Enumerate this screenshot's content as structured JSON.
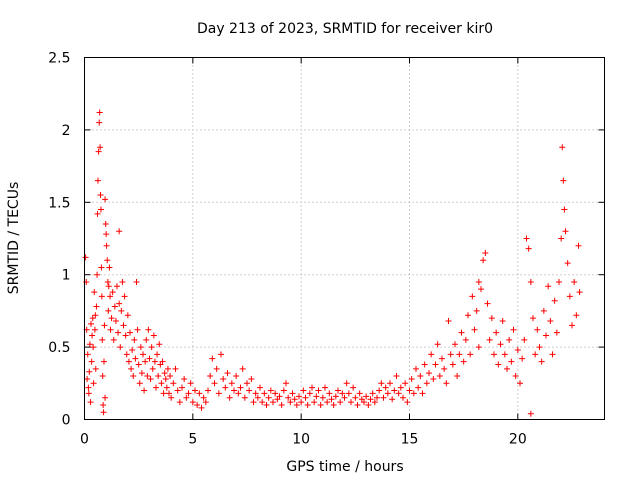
{
  "chart_data": {
    "type": "scatter",
    "title": "Day 213 of 2023, SRMTID for receiver kir0",
    "xlabel": "GPS time / hours",
    "ylabel": "SRMTID / TECUs",
    "xlim": [
      0,
      24
    ],
    "ylim": [
      0,
      2.5
    ],
    "xticks": [
      0,
      5,
      10,
      15,
      20
    ],
    "xtick_labels": [
      "0",
      "5",
      "10",
      "15",
      "20"
    ],
    "yticks": [
      0,
      0.5,
      1,
      1.5,
      2,
      2.5
    ],
    "ytick_labels": [
      "0",
      "0.5",
      "1",
      "1.5",
      "2",
      "2.5"
    ],
    "grid": true,
    "marker": "+",
    "series": [
      {
        "name": "SRMTID",
        "color": "#ff0000",
        "points": [
          [
            0.05,
            1.12
          ],
          [
            0.08,
            0.95
          ],
          [
            0.1,
            0.62
          ],
          [
            0.12,
            0.28
          ],
          [
            0.15,
            0.45
          ],
          [
            0.18,
            0.22
          ],
          [
            0.2,
            0.18
          ],
          [
            0.22,
            0.33
          ],
          [
            0.25,
            0.52
          ],
          [
            0.28,
            0.12
          ],
          [
            0.3,
            0.66
          ],
          [
            0.33,
            0.4
          ],
          [
            0.35,
            0.58
          ],
          [
            0.38,
            0.7
          ],
          [
            0.4,
            0.5
          ],
          [
            0.42,
            0.25
          ],
          [
            0.45,
            0.88
          ],
          [
            0.48,
            0.62
          ],
          [
            0.5,
            0.72
          ],
          [
            0.52,
            0.35
          ],
          [
            0.55,
            0.78
          ],
          [
            0.58,
            1.0
          ],
          [
            0.6,
            1.42
          ],
          [
            0.62,
            1.65
          ],
          [
            0.65,
            1.85
          ],
          [
            0.68,
            2.05
          ],
          [
            0.7,
            2.12
          ],
          [
            0.72,
            1.88
          ],
          [
            0.74,
            1.55
          ],
          [
            0.76,
            1.45
          ],
          [
            0.78,
            1.05
          ],
          [
            0.8,
            0.85
          ],
          [
            0.82,
            0.55
          ],
          [
            0.84,
            0.3
          ],
          [
            0.86,
            0.1
          ],
          [
            0.88,
            0.05
          ],
          [
            0.9,
            0.4
          ],
          [
            0.92,
            0.65
          ],
          [
            0.95,
            1.52
          ],
          [
            0.98,
            1.35
          ],
          [
            1.0,
            1.28
          ],
          [
            1.02,
            1.2
          ],
          [
            1.05,
            1.1
          ],
          [
            1.08,
            0.95
          ],
          [
            1.1,
            0.75
          ],
          [
            1.12,
            0.92
          ],
          [
            1.15,
            1.05
          ],
          [
            1.18,
            0.85
          ],
          [
            1.2,
            0.62
          ],
          [
            1.25,
            0.7
          ],
          [
            1.3,
            0.88
          ],
          [
            1.35,
            0.55
          ],
          [
            1.4,
            0.78
          ],
          [
            1.45,
            0.68
          ],
          [
            1.5,
            0.92
          ],
          [
            1.55,
            0.6
          ],
          [
            1.6,
            0.8
          ],
          [
            1.65,
            0.5
          ],
          [
            1.7,
            0.75
          ],
          [
            1.75,
            0.95
          ],
          [
            1.8,
            0.65
          ],
          [
            1.85,
            0.85
          ],
          [
            1.9,
            0.58
          ],
          [
            1.95,
            0.45
          ],
          [
            2.0,
            0.72
          ],
          [
            2.05,
            0.4
          ],
          [
            2.1,
            0.6
          ],
          [
            2.15,
            0.35
          ],
          [
            2.2,
            0.48
          ],
          [
            2.25,
            0.3
          ],
          [
            2.3,
            0.55
          ],
          [
            2.35,
            0.42
          ],
          [
            2.4,
            0.95
          ],
          [
            2.45,
            0.62
          ],
          [
            2.5,
            0.38
          ],
          [
            2.55,
            0.25
          ],
          [
            2.6,
            0.5
          ],
          [
            2.65,
            0.32
          ],
          [
            2.7,
            0.45
          ],
          [
            2.75,
            0.2
          ],
          [
            2.8,
            0.4
          ],
          [
            2.85,
            0.55
          ],
          [
            2.9,
            0.3
          ],
          [
            2.95,
            0.62
          ],
          [
            3.0,
            0.42
          ],
          [
            3.05,
            0.28
          ],
          [
            3.1,
            0.5
          ],
          [
            3.15,
            0.35
          ],
          [
            3.2,
            0.58
          ],
          [
            3.25,
            0.4
          ],
          [
            3.3,
            0.22
          ],
          [
            3.35,
            0.45
          ],
          [
            3.4,
            0.3
          ],
          [
            3.45,
            0.52
          ],
          [
            3.5,
            0.38
          ],
          [
            3.55,
            0.25
          ],
          [
            3.6,
            0.4
          ],
          [
            3.65,
            0.18
          ],
          [
            3.7,
            0.32
          ],
          [
            3.75,
            0.28
          ],
          [
            3.8,
            0.22
          ],
          [
            3.85,
            0.35
          ],
          [
            3.9,
            0.18
          ],
          [
            3.95,
            0.3
          ],
          [
            4.0,
            0.15
          ],
          [
            4.1,
            0.25
          ],
          [
            4.2,
            0.35
          ],
          [
            4.3,
            0.2
          ],
          [
            4.4,
            0.12
          ],
          [
            4.5,
            0.22
          ],
          [
            4.6,
            0.28
          ],
          [
            4.7,
            0.15
          ],
          [
            4.8,
            0.18
          ],
          [
            4.9,
            0.25
          ],
          [
            5.0,
            0.12
          ],
          [
            5.1,
            0.2
          ],
          [
            5.2,
            0.1
          ],
          [
            5.3,
            0.18
          ],
          [
            5.4,
            0.08
          ],
          [
            5.5,
            0.15
          ],
          [
            5.6,
            0.12
          ],
          [
            5.7,
            0.2
          ],
          [
            5.8,
            0.3
          ],
          [
            5.9,
            0.42
          ],
          [
            6.0,
            0.25
          ],
          [
            6.1,
            0.35
          ],
          [
            6.2,
            0.18
          ],
          [
            6.3,
            0.45
          ],
          [
            6.4,
            0.28
          ],
          [
            6.5,
            0.22
          ],
          [
            6.6,
            0.32
          ],
          [
            6.7,
            0.15
          ],
          [
            6.8,
            0.25
          ],
          [
            6.9,
            0.2
          ],
          [
            7.0,
            0.3
          ],
          [
            7.1,
            0.18
          ],
          [
            7.2,
            0.22
          ],
          [
            7.3,
            0.35
          ],
          [
            7.4,
            0.15
          ],
          [
            7.5,
            0.25
          ],
          [
            7.6,
            0.2
          ],
          [
            7.7,
            0.28
          ],
          [
            7.8,
            0.12
          ],
          [
            7.9,
            0.18
          ],
          [
            8.0,
            0.15
          ],
          [
            8.1,
            0.22
          ],
          [
            8.2,
            0.12
          ],
          [
            8.3,
            0.18
          ],
          [
            8.4,
            0.1
          ],
          [
            8.5,
            0.15
          ],
          [
            8.6,
            0.2
          ],
          [
            8.7,
            0.12
          ],
          [
            8.8,
            0.18
          ],
          [
            8.9,
            0.14
          ],
          [
            9.0,
            0.16
          ],
          [
            9.1,
            0.1
          ],
          [
            9.2,
            0.2
          ],
          [
            9.3,
            0.25
          ],
          [
            9.4,
            0.15
          ],
          [
            9.5,
            0.12
          ],
          [
            9.6,
            0.18
          ],
          [
            9.7,
            0.14
          ],
          [
            9.8,
            0.1
          ],
          [
            9.9,
            0.16
          ],
          [
            10.0,
            0.12
          ],
          [
            10.1,
            0.2
          ],
          [
            10.2,
            0.15
          ],
          [
            10.3,
            0.1
          ],
          [
            10.4,
            0.18
          ],
          [
            10.5,
            0.22
          ],
          [
            10.6,
            0.12
          ],
          [
            10.7,
            0.16
          ],
          [
            10.8,
            0.2
          ],
          [
            10.9,
            0.1
          ],
          [
            11.0,
            0.15
          ],
          [
            11.1,
            0.22
          ],
          [
            11.2,
            0.12
          ],
          [
            11.3,
            0.18
          ],
          [
            11.4,
            0.14
          ],
          [
            11.5,
            0.1
          ],
          [
            11.6,
            0.16
          ],
          [
            11.7,
            0.2
          ],
          [
            11.8,
            0.12
          ],
          [
            11.9,
            0.18
          ],
          [
            12.0,
            0.15
          ],
          [
            12.1,
            0.25
          ],
          [
            12.2,
            0.18
          ],
          [
            12.3,
            0.12
          ],
          [
            12.4,
            0.22
          ],
          [
            12.5,
            0.15
          ],
          [
            12.6,
            0.1
          ],
          [
            12.7,
            0.18
          ],
          [
            12.8,
            0.14
          ],
          [
            12.9,
            0.12
          ],
          [
            13.0,
            0.16
          ],
          [
            13.1,
            0.1
          ],
          [
            13.2,
            0.14
          ],
          [
            13.3,
            0.18
          ],
          [
            13.4,
            0.12
          ],
          [
            13.5,
            0.15
          ],
          [
            13.6,
            0.2
          ],
          [
            13.7,
            0.25
          ],
          [
            13.8,
            0.15
          ],
          [
            13.9,
            0.22
          ],
          [
            14.0,
            0.18
          ],
          [
            14.1,
            0.25
          ],
          [
            14.2,
            0.14
          ],
          [
            14.3,
            0.2
          ],
          [
            14.4,
            0.3
          ],
          [
            14.5,
            0.18
          ],
          [
            14.6,
            0.22
          ],
          [
            14.7,
            0.15
          ],
          [
            14.8,
            0.25
          ],
          [
            14.9,
            0.12
          ],
          [
            15.0,
            0.2
          ],
          [
            15.1,
            0.28
          ],
          [
            15.2,
            0.18
          ],
          [
            15.3,
            0.35
          ],
          [
            15.4,
            0.22
          ],
          [
            15.5,
            0.3
          ],
          [
            15.6,
            0.18
          ],
          [
            15.7,
            0.38
          ],
          [
            15.8,
            0.25
          ],
          [
            15.9,
            0.32
          ],
          [
            16.0,
            0.45
          ],
          [
            16.1,
            0.28
          ],
          [
            16.2,
            0.38
          ],
          [
            16.3,
            0.52
          ],
          [
            16.4,
            0.3
          ],
          [
            16.5,
            0.42
          ],
          [
            16.6,
            0.35
          ],
          [
            16.7,
            0.25
          ],
          [
            16.8,
            0.68
          ],
          [
            16.9,
            0.45
          ],
          [
            17.0,
            0.38
          ],
          [
            17.1,
            0.52
          ],
          [
            17.2,
            0.3
          ],
          [
            17.3,
            0.45
          ],
          [
            17.4,
            0.6
          ],
          [
            17.5,
            0.4
          ],
          [
            17.6,
            0.55
          ],
          [
            17.7,
            0.72
          ],
          [
            17.8,
            0.45
          ],
          [
            17.9,
            0.85
          ],
          [
            18.0,
            0.62
          ],
          [
            18.1,
            0.75
          ],
          [
            18.2,
            0.5
          ],
          [
            18.3,
            0.9
          ],
          [
            18.4,
            1.1
          ],
          [
            18.5,
            1.15
          ],
          [
            18.6,
            0.8
          ],
          [
            18.7,
            0.55
          ],
          [
            18.8,
            0.7
          ],
          [
            18.9,
            0.45
          ],
          [
            19.0,
            0.6
          ],
          [
            19.1,
            0.38
          ],
          [
            19.2,
            0.52
          ],
          [
            19.3,
            0.68
          ],
          [
            19.4,
            0.45
          ],
          [
            19.5,
            0.35
          ],
          [
            19.6,
            0.55
          ],
          [
            19.7,
            0.4
          ],
          [
            19.8,
            0.62
          ],
          [
            19.9,
            0.3
          ],
          [
            20.0,
            0.48
          ],
          [
            20.1,
            0.25
          ],
          [
            20.2,
            0.42
          ],
          [
            20.3,
            0.55
          ],
          [
            20.4,
            1.25
          ],
          [
            20.5,
            1.18
          ],
          [
            20.6,
            0.95
          ],
          [
            20.7,
            0.7
          ],
          [
            20.8,
            0.45
          ],
          [
            20.9,
            0.62
          ],
          [
            21.0,
            0.5
          ],
          [
            21.1,
            0.4
          ],
          [
            21.2,
            0.75
          ],
          [
            21.3,
            0.58
          ],
          [
            21.4,
            0.92
          ],
          [
            21.5,
            0.68
          ],
          [
            21.6,
            0.45
          ],
          [
            21.7,
            0.82
          ],
          [
            21.8,
            0.6
          ],
          [
            21.9,
            0.95
          ],
          [
            22.0,
            1.25
          ],
          [
            22.05,
            1.88
          ],
          [
            22.1,
            1.65
          ],
          [
            22.15,
            1.45
          ],
          [
            22.2,
            1.3
          ],
          [
            22.3,
            1.08
          ],
          [
            22.4,
            0.85
          ],
          [
            22.5,
            0.65
          ],
          [
            22.6,
            0.95
          ],
          [
            22.7,
            0.72
          ],
          [
            22.8,
            1.2
          ],
          [
            22.85,
            0.88
          ],
          [
            20.6,
            0.04
          ],
          [
            18.2,
            0.95
          ],
          [
            1.6,
            1.3
          ],
          [
            0.95,
            0.15
          ]
        ]
      }
    ]
  }
}
